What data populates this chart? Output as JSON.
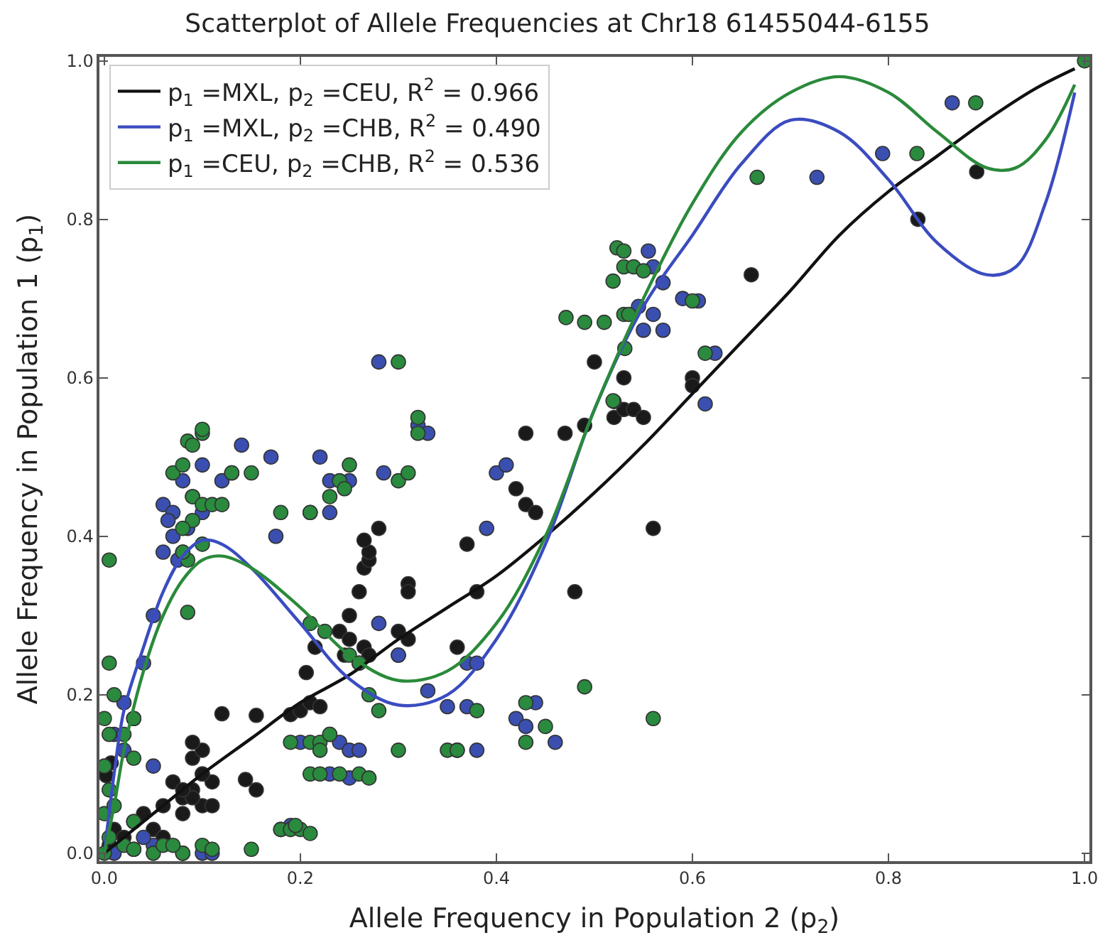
{
  "chart_data": {
    "type": "scatter",
    "title": "Scatterplot of Allele Frequencies at Chr18 61455044-6155",
    "xlabel": "Allele Frequency in Population 2 (p$_{2}$)",
    "ylabel": "Allele Frequency in Population 1 (p$_{1}$)",
    "xlim": [
      -0.005,
      1.005
    ],
    "ylim": [
      -0.01,
      1.005
    ],
    "xticks": [
      {
        "value": 0,
        "label": "0.0"
      },
      {
        "value": 0.2,
        "label": "0.2"
      },
      {
        "value": 0.4,
        "label": "0.4"
      },
      {
        "value": 0.6,
        "label": "0.6"
      },
      {
        "value": 0.8,
        "label": "0.8"
      },
      {
        "value": 1,
        "label": "1.0"
      }
    ],
    "yticks": [
      {
        "value": 0,
        "label": "0.0"
      },
      {
        "value": 0.2,
        "label": "0.2"
      },
      {
        "value": 0.4,
        "label": "0.4"
      },
      {
        "value": 0.6,
        "label": "0.6"
      },
      {
        "value": 0.8,
        "label": "0.8"
      },
      {
        "value": 1,
        "label": "1.0"
      }
    ],
    "legend": "top left",
    "series": [
      {
        "marker": "circle",
        "color": "#1a1a1a",
        "x": [
          0.005,
          0.01,
          0.02,
          0.03,
          0.04,
          0.05,
          0.06,
          0.07,
          0.08,
          0.09,
          0.1,
          0.1,
          0.09,
          0.1,
          0.002,
          0.007,
          0.06,
          0.09,
          0.09,
          0.11,
          0.1,
          0.11,
          0.08,
          0.08,
          0.144,
          0.155,
          0.12,
          0.155,
          0.19,
          0.2,
          0.21,
          0.22,
          0.206,
          0.215,
          0.24,
          0.25,
          0.25,
          0.265,
          0.27,
          0.245,
          0.26,
          0.26,
          0.265,
          0.27,
          0.27,
          0.265,
          0.28,
          0.31,
          0.31,
          0.3,
          0.31,
          0.3,
          0.36,
          0.37,
          0.38,
          0.42,
          0.43,
          0.44,
          0.43,
          0.48,
          0.47,
          0.49,
          0.52,
          0.53,
          0.54,
          0.55,
          0.5,
          0.52,
          0.53,
          0.56,
          0.6,
          0.6,
          0.66,
          0.83,
          0.89
        ],
        "values": [
          0.01,
          0.03,
          0.02,
          0.04,
          0.05,
          0.03,
          0.06,
          0.09,
          0.07,
          0.08,
          0.06,
          0.1,
          0.12,
          0.13,
          0.098,
          0.114,
          0.02,
          0.14,
          0.07,
          0.09,
          0.1,
          0.06,
          0.08,
          0.05,
          0.093,
          0.08,
          0.176,
          0.174,
          0.175,
          0.18,
          0.19,
          0.185,
          0.228,
          0.26,
          0.28,
          0.3,
          0.27,
          0.26,
          0.25,
          0.25,
          0.24,
          0.33,
          0.36,
          0.37,
          0.38,
          0.395,
          0.41,
          0.34,
          0.33,
          0.28,
          0.27,
          0.25,
          0.26,
          0.39,
          0.33,
          0.46,
          0.44,
          0.43,
          0.53,
          0.33,
          0.53,
          0.54,
          0.55,
          0.56,
          0.56,
          0.55,
          0.62,
          0.57,
          0.6,
          0.41,
          0.6,
          0.59,
          0.73,
          0.8,
          0.86
        ]
      },
      {
        "marker": "circle",
        "color": "#3a4fb0",
        "x": [
          0.06,
          0.07,
          0.065,
          0.07,
          0.06,
          0.075,
          0.08,
          0.085,
          0.09,
          0.1,
          0.1,
          0.08,
          0.12,
          0.13,
          0.14,
          0.17,
          0.175,
          0.05,
          0.04,
          0.02,
          0.01,
          0.02,
          0.05,
          0.03,
          0.01,
          0.03,
          0.05,
          0.08,
          0.1,
          0.11,
          0.04,
          0.18,
          0.19,
          0.21,
          0.23,
          0.23,
          0.25,
          0.22,
          0.28,
          0.285,
          0.32,
          0.33,
          0.4,
          0.41,
          0.2,
          0.23,
          0.24,
          0.25,
          0.26,
          0.25,
          0.23,
          0.28,
          0.3,
          0.33,
          0.35,
          0.37,
          0.36,
          0.38,
          0.37,
          0.38,
          0.39,
          0.42,
          0.43,
          0.44,
          0.46,
          0.613,
          0.623,
          0.606,
          0.59,
          0.555,
          0.56,
          0.57,
          0.545,
          0.55,
          0.57,
          0.56,
          0.727,
          0.794,
          0.865
        ],
        "values": [
          0.44,
          0.43,
          0.42,
          0.4,
          0.38,
          0.37,
          0.38,
          0.41,
          0.45,
          0.49,
          0.43,
          0.47,
          0.47,
          0.48,
          0.515,
          0.5,
          0.4,
          0.3,
          0.24,
          0.19,
          0.15,
          0.13,
          0.11,
          0.17,
          0.0,
          0.005,
          0.01,
          0.0,
          0.0,
          0.0,
          0.02,
          0.03,
          0.035,
          0.43,
          0.43,
          0.47,
          0.47,
          0.5,
          0.62,
          0.48,
          0.54,
          0.53,
          0.48,
          0.49,
          0.14,
          0.15,
          0.14,
          0.13,
          0.13,
          0.095,
          0.1,
          0.29,
          0.25,
          0.205,
          0.185,
          0.185,
          0.13,
          0.13,
          0.24,
          0.24,
          0.41,
          0.17,
          0.16,
          0.19,
          0.14,
          0.567,
          0.631,
          0.697,
          0.7,
          0.76,
          0.74,
          0.72,
          0.69,
          0.66,
          0.66,
          0.68,
          0.853,
          0.883,
          0.947
        ]
      },
      {
        "marker": "circle",
        "color": "#2a8a3e",
        "x": [
          0.0,
          0.005,
          0.0,
          0.005,
          0.01,
          0.0,
          0.005,
          0.0,
          0.01,
          0.005,
          0.005,
          0.02,
          0.03,
          0.05,
          0.06,
          0.08,
          0.1,
          0.11,
          0.15,
          0.02,
          0.03,
          0.03,
          0.07,
          0.03,
          0.07,
          0.08,
          0.085,
          0.09,
          0.1,
          0.1,
          0.09,
          0.1,
          0.11,
          0.09,
          0.08,
          0.1,
          0.085,
          0.08,
          0.13,
          0.15,
          0.12,
          0.085,
          0.18,
          0.19,
          0.2,
          0.21,
          0.195,
          0.18,
          0.21,
          0.23,
          0.24,
          0.25,
          0.245,
          0.3,
          0.3,
          0.31,
          0.32,
          0.32,
          0.21,
          0.225,
          0.25,
          0.26,
          0.19,
          0.21,
          0.22,
          0.22,
          0.23,
          0.21,
          0.22,
          0.24,
          0.26,
          0.27,
          0.3,
          0.28,
          0.27,
          0.35,
          0.36,
          0.38,
          0.43,
          0.43,
          0.45,
          0.49,
          0.56,
          0.471,
          0.49,
          0.51,
          0.519,
          0.523,
          0.53,
          0.53,
          0.54,
          0.55,
          0.53,
          0.535,
          0.531,
          0.613,
          0.6,
          0.519,
          0.666,
          0.829,
          0.889,
          1.0
        ],
        "values": [
          0.0,
          0.02,
          0.05,
          0.08,
          0.06,
          0.11,
          0.15,
          0.17,
          0.2,
          0.24,
          0.37,
          0.01,
          0.005,
          0.0,
          0.01,
          0.0,
          0.01,
          0.005,
          0.005,
          0.15,
          0.12,
          0.17,
          0.01,
          0.04,
          0.48,
          0.49,
          0.52,
          0.515,
          0.53,
          0.535,
          0.45,
          0.44,
          0.44,
          0.42,
          0.41,
          0.39,
          0.37,
          0.38,
          0.48,
          0.48,
          0.44,
          0.304,
          0.03,
          0.03,
          0.03,
          0.025,
          0.035,
          0.43,
          0.43,
          0.45,
          0.47,
          0.49,
          0.46,
          0.62,
          0.47,
          0.48,
          0.55,
          0.53,
          0.29,
          0.28,
          0.25,
          0.24,
          0.14,
          0.14,
          0.14,
          0.13,
          0.15,
          0.1,
          0.1,
          0.1,
          0.1,
          0.095,
          0.13,
          0.18,
          0.2,
          0.13,
          0.13,
          0.18,
          0.14,
          0.19,
          0.16,
          0.21,
          0.17,
          0.676,
          0.67,
          0.67,
          0.722,
          0.764,
          0.76,
          0.74,
          0.74,
          0.735,
          0.68,
          0.68,
          0.637,
          0.631,
          0.697,
          0.571,
          0.853,
          0.883,
          0.947,
          1.0
        ]
      },
      {
        "type": "line",
        "marker": "none",
        "name": "p$_{1}$ =MXL, p$_{2}$ =CEU, R$^{2}$ = 0.966",
        "color": "#111111",
        "x": [
          0,
          0.05,
          0.1,
          0.15,
          0.2,
          0.25,
          0.3,
          0.35,
          0.4,
          0.45,
          0.5,
          0.55,
          0.6,
          0.65,
          0.7,
          0.75,
          0.8,
          0.85,
          0.9,
          0.95,
          0.99
        ],
        "values": [
          0,
          0.05,
          0.1,
          0.145,
          0.19,
          0.225,
          0.27,
          0.31,
          0.35,
          0.4,
          0.455,
          0.515,
          0.58,
          0.645,
          0.71,
          0.78,
          0.835,
          0.88,
          0.925,
          0.965,
          0.99
        ]
      },
      {
        "type": "line",
        "marker": "none",
        "name": "p$_{1}$ =MXL, p$_{2}$ =CHB, R$^{2}$ = 0.490",
        "color": "#3b4cc0",
        "x": [
          0,
          0.01,
          0.02,
          0.04,
          0.06,
          0.08,
          0.1,
          0.12,
          0.15,
          0.2,
          0.25,
          0.3,
          0.35,
          0.4,
          0.45,
          0.5,
          0.55,
          0.6,
          0.65,
          0.7,
          0.75,
          0.8,
          0.85,
          0.9,
          0.93,
          0.96,
          0.99
        ],
        "values": [
          0.0,
          0.1,
          0.18,
          0.26,
          0.33,
          0.375,
          0.395,
          0.39,
          0.36,
          0.29,
          0.22,
          0.187,
          0.2,
          0.27,
          0.39,
          0.56,
          0.69,
          0.78,
          0.87,
          0.925,
          0.91,
          0.85,
          0.77,
          0.73,
          0.74,
          0.82,
          0.96
        ]
      },
      {
        "type": "line",
        "marker": "none",
        "name": "p$_{1}$ =CEU, p$_{2}$ =CHB, R$^{2}$ = 0.536",
        "color": "#2a8a3a",
        "x": [
          0,
          0.01,
          0.02,
          0.04,
          0.06,
          0.08,
          0.1,
          0.12,
          0.15,
          0.2,
          0.25,
          0.3,
          0.35,
          0.4,
          0.45,
          0.5,
          0.55,
          0.6,
          0.65,
          0.7,
          0.75,
          0.8,
          0.85,
          0.9,
          0.93,
          0.96,
          0.99
        ],
        "values": [
          0.0,
          0.06,
          0.13,
          0.23,
          0.3,
          0.345,
          0.37,
          0.375,
          0.36,
          0.31,
          0.25,
          0.218,
          0.23,
          0.29,
          0.4,
          0.56,
          0.7,
          0.82,
          0.91,
          0.96,
          0.98,
          0.96,
          0.91,
          0.865,
          0.865,
          0.9,
          0.97
        ]
      }
    ]
  }
}
